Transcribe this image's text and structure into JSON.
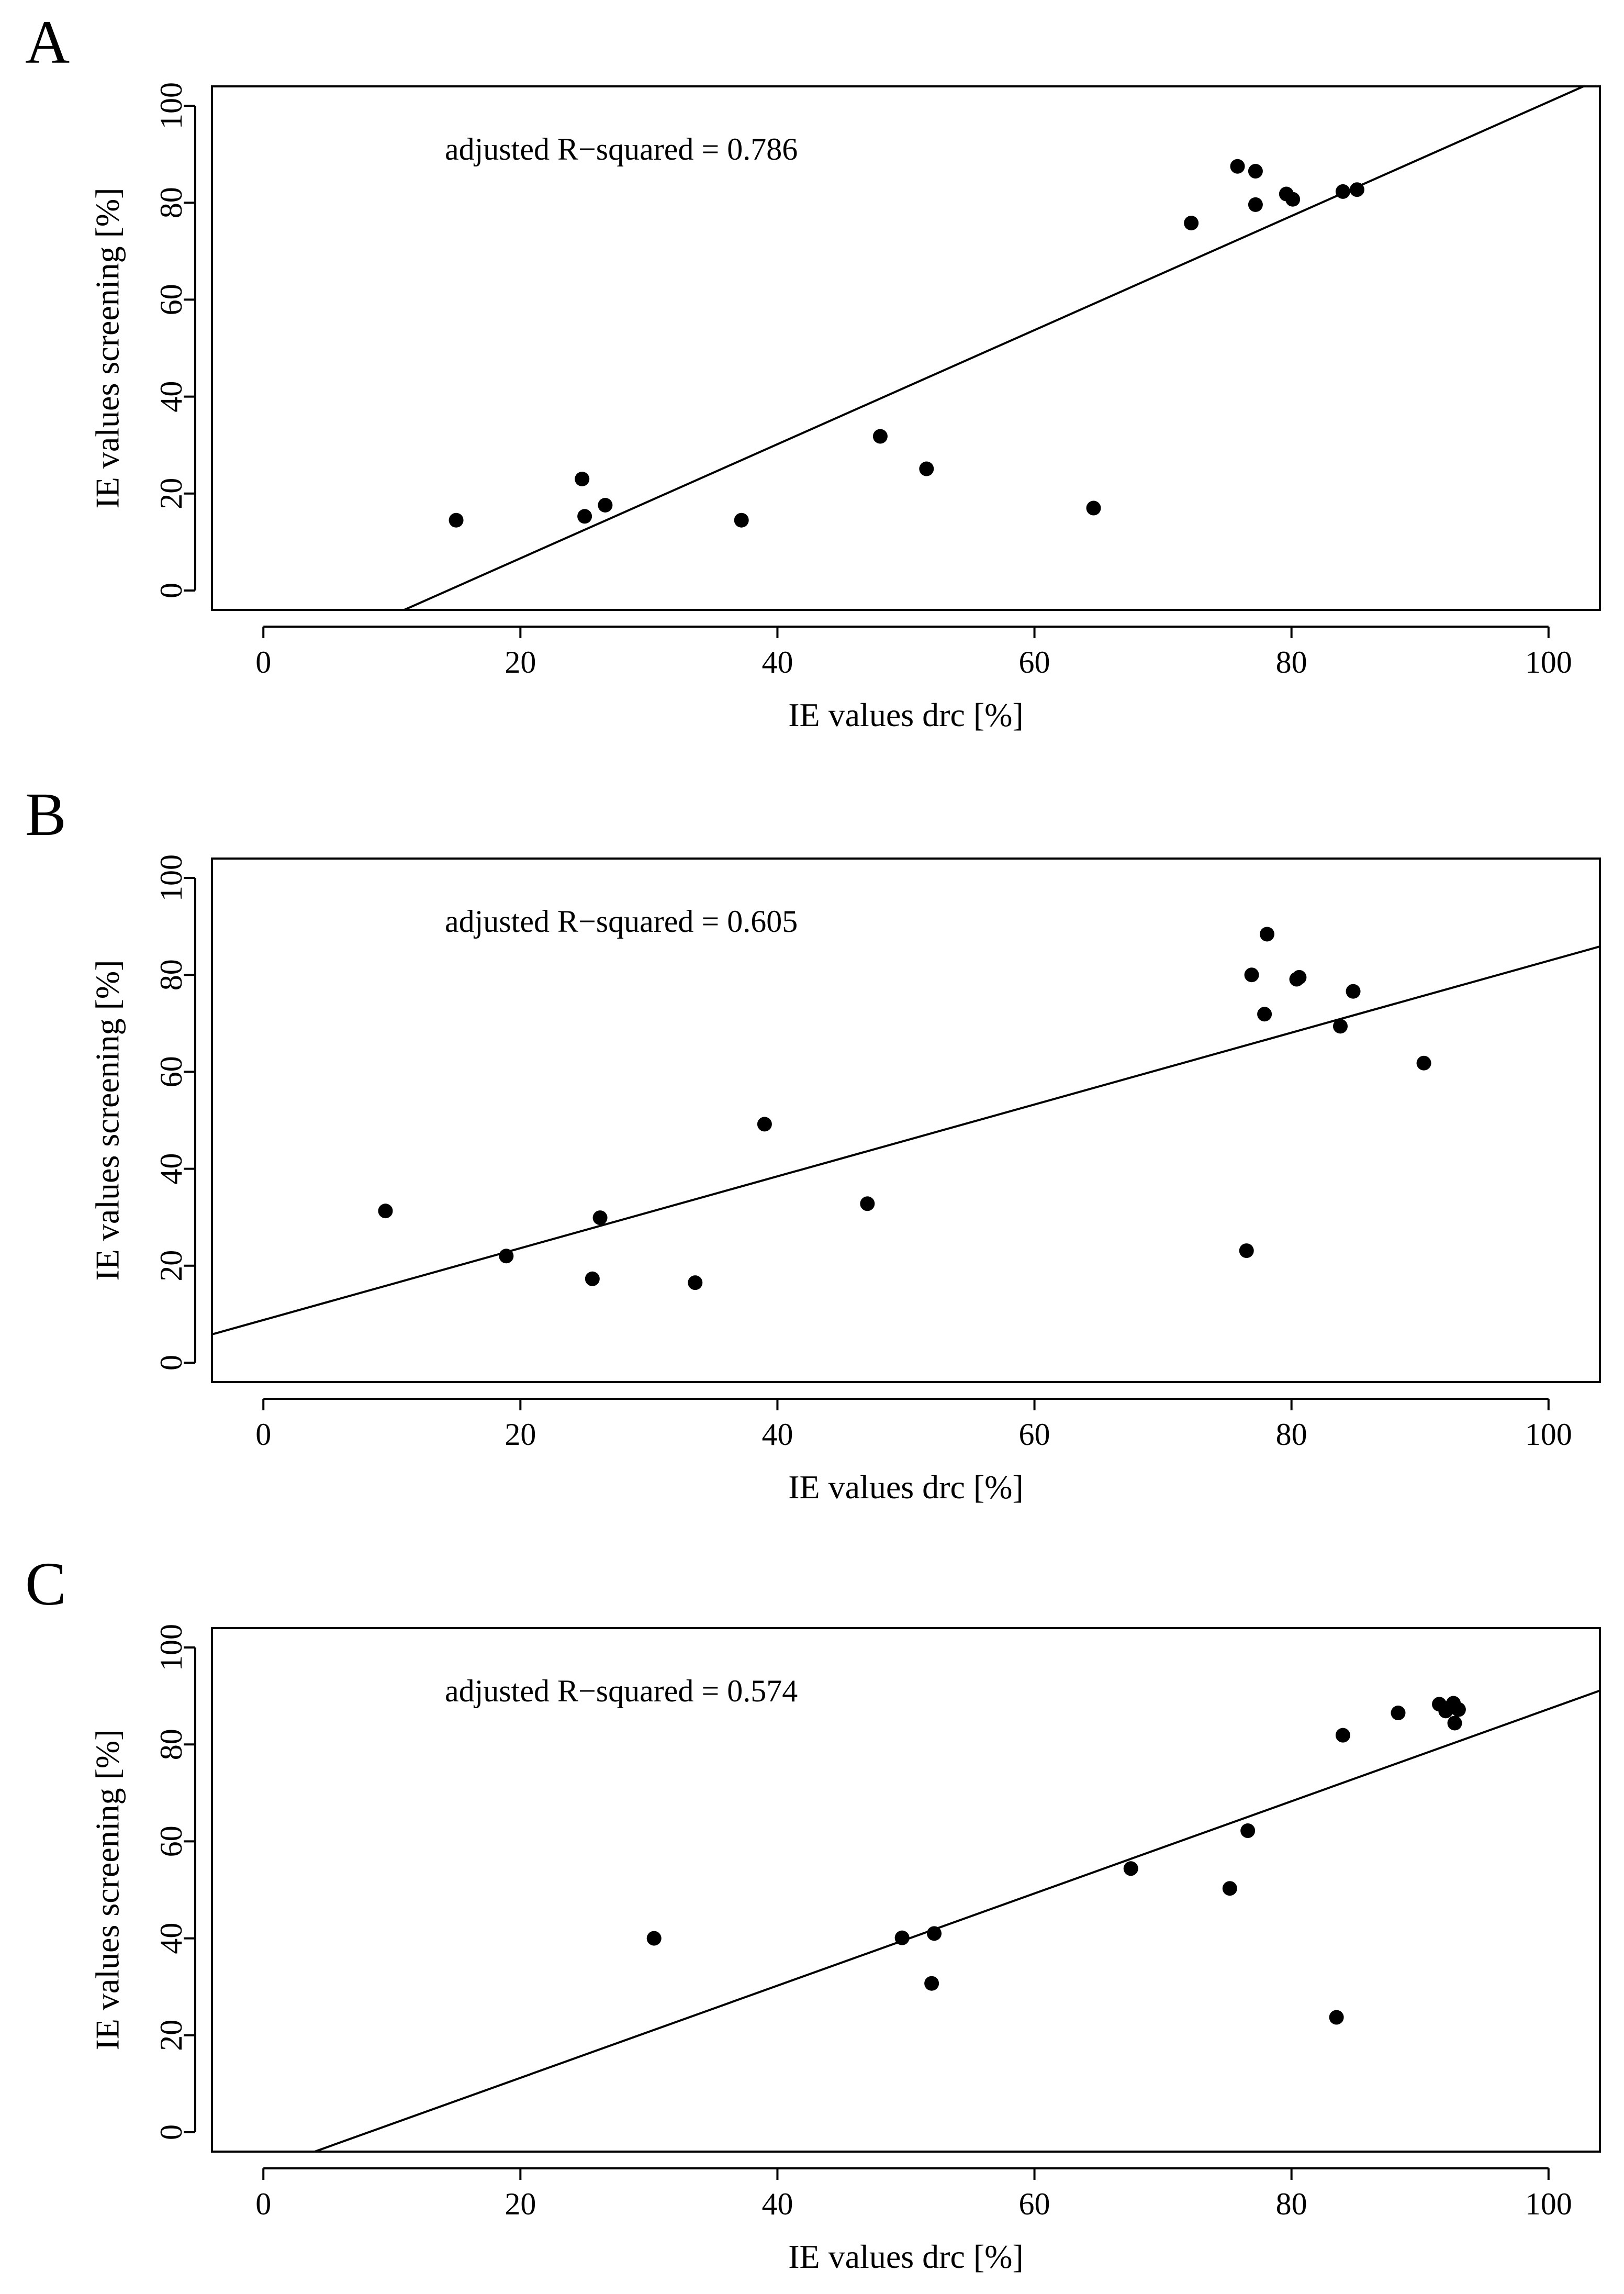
{
  "chart_data": [
    {
      "type": "scatter",
      "panel_label": "A",
      "xlabel": "IE values drc [%]",
      "ylabel": "IE values screening [%]",
      "xlim": [
        -4,
        104
      ],
      "ylim": [
        -4,
        104
      ],
      "xticks": [
        0,
        20,
        40,
        60,
        80,
        100
      ],
      "yticks": [
        0,
        20,
        40,
        60,
        80,
        100
      ],
      "xtick_labels": [
        "0",
        "20",
        "40",
        "60",
        "80",
        "100"
      ],
      "ytick_labels": [
        "0",
        "20",
        "40",
        "60",
        "80",
        "100"
      ],
      "annotation": "adjusted R−squared = 0.786",
      "regression_line": {
        "intercept": -16.9,
        "slope": 1.177
      },
      "points": {
        "x": [
          15.0,
          24.8,
          25.0,
          26.6,
          37.2,
          48.0,
          51.6,
          64.6,
          72.2,
          75.8,
          77.2,
          77.2,
          79.6,
          80.1,
          84.0,
          85.1
        ],
        "y": [
          14.5,
          23.0,
          15.3,
          17.6,
          14.5,
          31.8,
          25.1,
          17.0,
          75.8,
          87.5,
          86.5,
          79.6,
          81.8,
          80.7,
          82.3,
          82.7
        ]
      }
    },
    {
      "type": "scatter",
      "panel_label": "B",
      "xlabel": "IE values drc [%]",
      "ylabel": "IE values screening [%]",
      "xlim": [
        -4,
        104
      ],
      "ylim": [
        -4,
        104
      ],
      "xticks": [
        0,
        20,
        40,
        60,
        80,
        100
      ],
      "yticks": [
        0,
        20,
        40,
        60,
        80,
        100
      ],
      "xtick_labels": [
        "0",
        "20",
        "40",
        "60",
        "80",
        "100"
      ],
      "ytick_labels": [
        "0",
        "20",
        "40",
        "60",
        "80",
        "100"
      ],
      "annotation": "adjusted R−squared = 0.605",
      "regression_line": {
        "intercept": 8.8,
        "slope": 0.741
      },
      "points": {
        "x": [
          9.5,
          18.9,
          25.6,
          26.2,
          33.6,
          39.0,
          47.0,
          76.5,
          76.9,
          77.9,
          78.1,
          80.4,
          80.6,
          83.8,
          84.8,
          90.3
        ],
        "y": [
          31.3,
          22.0,
          17.3,
          29.9,
          16.5,
          49.2,
          32.8,
          23.1,
          80.0,
          71.9,
          88.4,
          79.1,
          79.5,
          69.4,
          76.6,
          61.8
        ]
      }
    },
    {
      "type": "scatter",
      "panel_label": "C",
      "xlabel": "IE values drc [%]",
      "ylabel": "IE values screening [%]",
      "xlim": [
        -4,
        104
      ],
      "ylim": [
        -4,
        104
      ],
      "xticks": [
        0,
        20,
        40,
        60,
        80,
        100
      ],
      "yticks": [
        0,
        20,
        40,
        60,
        80,
        100
      ],
      "xtick_labels": [
        "0",
        "20",
        "40",
        "60",
        "80",
        "100"
      ],
      "ytick_labels": [
        "0",
        "20",
        "40",
        "60",
        "80",
        "100"
      ],
      "annotation": "adjusted R−squared = 0.574",
      "regression_line": {
        "intercept": -7.8,
        "slope": 0.951
      },
      "points": {
        "x": [
          30.4,
          49.7,
          52.0,
          52.2,
          67.5,
          75.2,
          76.6,
          83.5,
          84.0,
          88.3,
          91.5,
          92.0,
          92.3,
          92.6,
          92.7,
          93.0
        ],
        "y": [
          40.0,
          40.1,
          30.7,
          41.0,
          54.4,
          50.3,
          62.2,
          23.7,
          81.9,
          86.5,
          88.3,
          86.9,
          87.6,
          88.5,
          84.4,
          87.2
        ]
      }
    }
  ]
}
